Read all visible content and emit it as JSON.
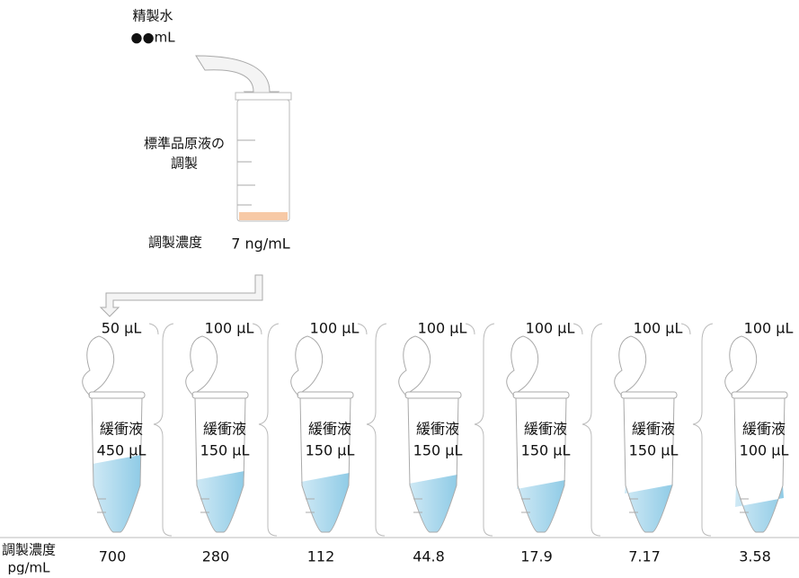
{
  "top": {
    "water_label": "精製水",
    "water_amount": "●●mL",
    "stock_label_lines": [
      "標準品原液の",
      "調製"
    ],
    "stock_conc_label": "調製濃度",
    "stock_conc": "7 ng/mL"
  },
  "bottom": {
    "conc_label": "調製濃度",
    "conc_unit": "pg/mL"
  },
  "tubes": [
    {
      "transfer": "50 µL",
      "transfer_color": "#e02020",
      "buffer": "緩衝液",
      "buffer_volume": "450 µL",
      "buffer_color": "#e02020",
      "conc": "700"
    },
    {
      "transfer": "100 µL",
      "transfer_color": "#111111",
      "buffer": "緩衝液",
      "buffer_volume": "150 µL",
      "buffer_color": "#111111",
      "conc": "280"
    },
    {
      "transfer": "100 µL",
      "transfer_color": "#111111",
      "buffer": "緩衝液",
      "buffer_volume": "150 µL",
      "buffer_color": "#111111",
      "conc": "112"
    },
    {
      "transfer": "100 µL",
      "transfer_color": "#111111",
      "buffer": "緩衝液",
      "buffer_volume": "150 µL",
      "buffer_color": "#111111",
      "conc": "44.8"
    },
    {
      "transfer": "100 µL",
      "transfer_color": "#111111",
      "buffer": "緩衝液",
      "buffer_volume": "150 µL",
      "buffer_color": "#111111",
      "conc": "17.9"
    },
    {
      "transfer": "100 µL",
      "transfer_color": "#111111",
      "buffer": "緩衝液",
      "buffer_volume": "150 µL",
      "buffer_color": "#111111",
      "conc": "7.17"
    },
    {
      "transfer": "100 µL",
      "transfer_color": "#111111",
      "buffer": "緩衝液",
      "buffer_volume": "100 µL",
      "buffer_color": "#e02020",
      "conc": "3.58"
    }
  ]
}
